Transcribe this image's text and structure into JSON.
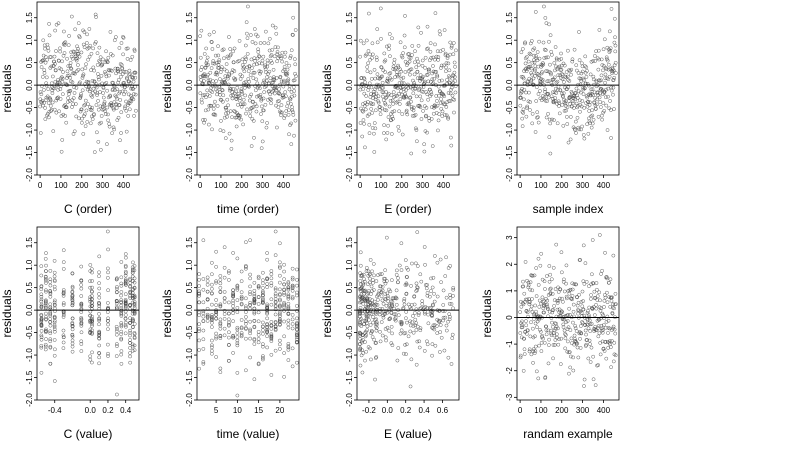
{
  "colors": {
    "points": "#444444",
    "frame": "#000000",
    "reference_line": "#000000",
    "background": "#ffffff"
  },
  "chart_data": [
    {
      "type": "scatter",
      "xlabel": "C (order)",
      "ylabel": "residuals",
      "xlim": [
        -15,
        475
      ],
      "ylim": [
        -2,
        1.85
      ],
      "xticks": [
        0,
        100,
        200,
        300,
        400
      ],
      "xtick_labels": [
        "0",
        "100",
        "200",
        "300",
        "400"
      ],
      "yticks": [
        -2,
        -1.5,
        -1,
        -0.5,
        0,
        0.5,
        1,
        1.5
      ],
      "ytick_labels": [
        "-2.0",
        "-1.5",
        "-1.0",
        "-0.5",
        "0.0",
        "0.5",
        "1.0",
        "1.5"
      ],
      "reference_line_y": 0,
      "grid": false,
      "points": {
        "n": 460,
        "x_kind": "index",
        "x_max": 460,
        "spread": 0.55,
        "y_min": -1.9,
        "y_max": 1.75,
        "seed": 11,
        "trend": "slight-down"
      }
    },
    {
      "type": "scatter",
      "xlabel": "time (order)",
      "ylabel": "residuals",
      "xlim": [
        -15,
        475
      ],
      "ylim": [
        -2,
        1.85
      ],
      "xticks": [
        0,
        100,
        200,
        300,
        400
      ],
      "xtick_labels": [
        "0",
        "100",
        "200",
        "300",
        "400"
      ],
      "yticks": [
        -2,
        -1.5,
        -1,
        -0.5,
        0,
        0.5,
        1,
        1.5
      ],
      "ytick_labels": [
        "-2.0",
        "-1.5",
        "-1.0",
        "-0.5",
        "0.0",
        "0.5",
        "1.0",
        "1.5"
      ],
      "reference_line_y": 0,
      "grid": false,
      "points": {
        "n": 460,
        "x_kind": "index",
        "x_max": 460,
        "spread": 0.55,
        "y_min": -1.9,
        "y_max": 1.75,
        "seed": 23,
        "trend": "flat"
      }
    },
    {
      "type": "scatter",
      "xlabel": "E (order)",
      "ylabel": "residuals",
      "xlim": [
        -15,
        475
      ],
      "ylim": [
        -2,
        1.85
      ],
      "xticks": [
        0,
        100,
        200,
        300,
        400
      ],
      "xtick_labels": [
        "0",
        "100",
        "200",
        "300",
        "400"
      ],
      "yticks": [
        -2,
        -1.5,
        -1,
        -0.5,
        0,
        0.5,
        1,
        1.5
      ],
      "ytick_labels": [
        "-2.0",
        "-1.5",
        "-1.0",
        "-0.5",
        "0.0",
        "0.5",
        "1.0",
        "1.5"
      ],
      "reference_line_y": 0,
      "grid": false,
      "points": {
        "n": 460,
        "x_kind": "index",
        "x_max": 460,
        "spread": 0.55,
        "y_min": -1.9,
        "y_max": 1.75,
        "seed": 37,
        "trend": "flat"
      }
    },
    {
      "type": "scatter",
      "xlabel": "sample index",
      "ylabel": "residuals",
      "xlim": [
        -15,
        475
      ],
      "ylim": [
        -2,
        1.85
      ],
      "xticks": [
        0,
        100,
        200,
        300,
        400
      ],
      "xtick_labels": [
        "0",
        "100",
        "200",
        "300",
        "400"
      ],
      "yticks": [
        -2,
        -1.5,
        -1,
        -0.5,
        0,
        0.5,
        1,
        1.5
      ],
      "ytick_labels": [
        "-2.0",
        "-1.5",
        "-1.0",
        "-0.5",
        "0.0",
        "0.5",
        "1.0",
        "1.5"
      ],
      "reference_line_y": 0,
      "grid": false,
      "points": {
        "n": 460,
        "x_kind": "index",
        "x_max": 460,
        "spread": 0.5,
        "y_min": -1.9,
        "y_max": 1.75,
        "seed": 41,
        "trend": "wave"
      }
    },
    {
      "type": "scatter",
      "xlabel": "C (value)",
      "ylabel": "residuals",
      "xlim": [
        -0.6,
        0.55
      ],
      "ylim": [
        -2,
        1.85
      ],
      "xticks": [
        -0.4,
        0,
        0.2,
        0.4
      ],
      "xtick_labels": [
        "-0.4",
        "0.0",
        "0.2",
        "0.4"
      ],
      "yticks": [
        -2,
        -1.5,
        -1,
        -0.5,
        0,
        0.5,
        1,
        1.5
      ],
      "ytick_labels": [
        "-2.0",
        "-1.5",
        "-1.0",
        "-0.5",
        "0.0",
        "0.5",
        "1.0",
        "1.5"
      ],
      "reference_line_y": 0,
      "grid": false,
      "points": {
        "n": 460,
        "x_kind": "discrete",
        "x_levels": [
          -0.55,
          -0.5,
          -0.45,
          -0.4,
          -0.3,
          -0.2,
          -0.1,
          0.0,
          0.02,
          0.1,
          0.2,
          0.3,
          0.35,
          0.4,
          0.45,
          0.48,
          0.5
        ],
        "spread": 0.55,
        "y_min": -1.9,
        "y_max": 1.75,
        "seed": 53,
        "trend": "flat"
      }
    },
    {
      "type": "scatter",
      "xlabel": "time (value)",
      "ylabel": "residuals",
      "xlim": [
        0.5,
        24.5
      ],
      "ylim": [
        -2,
        1.85
      ],
      "xticks": [
        5,
        10,
        15,
        20
      ],
      "xtick_labels": [
        "5",
        "10",
        "15",
        "20"
      ],
      "yticks": [
        -2,
        -1.5,
        -1,
        -0.5,
        0,
        0.5,
        1,
        1.5
      ],
      "ytick_labels": [
        "-2.0",
        "-1.5",
        "-1.0",
        "-0.5",
        "0.0",
        "0.5",
        "1.0",
        "1.5"
      ],
      "reference_line_y": 0,
      "grid": false,
      "points": {
        "n": 460,
        "x_kind": "discrete",
        "x_levels": [
          1,
          2,
          3,
          4,
          5,
          6,
          7,
          8,
          9,
          10,
          11,
          12,
          13,
          14,
          15,
          16,
          17,
          18,
          19,
          20,
          21,
          22,
          23,
          24
        ],
        "spread": 0.55,
        "y_min": -1.9,
        "y_max": 1.75,
        "seed": 67,
        "trend": "flat"
      }
    },
    {
      "type": "scatter",
      "xlabel": "E (value)",
      "ylabel": "residuals",
      "xlim": [
        -0.33,
        0.78
      ],
      "ylim": [
        -2,
        1.85
      ],
      "xticks": [
        -0.2,
        0,
        0.2,
        0.4,
        0.6
      ],
      "xtick_labels": [
        "-0.2",
        "0.0",
        "0.2",
        "0.4",
        "0.6"
      ],
      "yticks": [
        -2,
        -1.5,
        -1,
        -0.5,
        0,
        0.5,
        1,
        1.5
      ],
      "ytick_labels": [
        "-2.0",
        "-1.5",
        "-1.0",
        "-0.5",
        "0.0",
        "0.5",
        "1.0",
        "1.5"
      ],
      "reference_line_y": 0,
      "grid": false,
      "points": {
        "n": 460,
        "x_kind": "skewed",
        "x_from": -0.3,
        "x_to": 0.72,
        "spread": 0.55,
        "y_min": -1.9,
        "y_max": 1.75,
        "seed": 79,
        "trend": "flat"
      }
    },
    {
      "type": "scatter",
      "xlabel": "randam example",
      "ylabel": "residuals",
      "xlim": [
        -15,
        475
      ],
      "ylim": [
        -3.1,
        3.4
      ],
      "xticks": [
        0,
        100,
        200,
        300,
        400
      ],
      "xtick_labels": [
        "0",
        "100",
        "200",
        "300",
        "400"
      ],
      "yticks": [
        -3,
        -2,
        -1,
        0,
        1,
        2,
        3
      ],
      "ytick_labels": [
        "-3",
        "-2",
        "-1",
        "0",
        "1",
        "2",
        "3"
      ],
      "reference_line_y": 0,
      "grid": false,
      "points": {
        "n": 460,
        "x_kind": "index",
        "x_max": 460,
        "spread": 1.0,
        "y_min": -2.9,
        "y_max": 3.1,
        "seed": 97,
        "trend": "flat"
      }
    }
  ]
}
